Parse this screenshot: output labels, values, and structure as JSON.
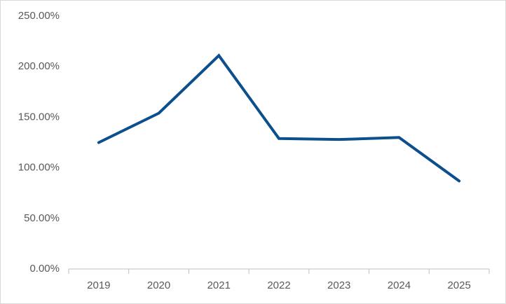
{
  "chart_data": {
    "type": "line",
    "categories": [
      "2019",
      "2020",
      "2021",
      "2022",
      "2023",
      "2024",
      "2025"
    ],
    "values": [
      125,
      154,
      211,
      129,
      128,
      130,
      87
    ],
    "color": "#0b4f8c",
    "ylim": [
      0,
      250
    ],
    "yticks": [
      {
        "value": 0,
        "label": "0.00%"
      },
      {
        "value": 50,
        "label": "50.00%"
      },
      {
        "value": 100,
        "label": "100.00%"
      },
      {
        "value": 150,
        "label": "150.00%"
      },
      {
        "value": 200,
        "label": "200.00%"
      },
      {
        "value": 250,
        "label": "250.00%"
      }
    ],
    "grid": false
  }
}
